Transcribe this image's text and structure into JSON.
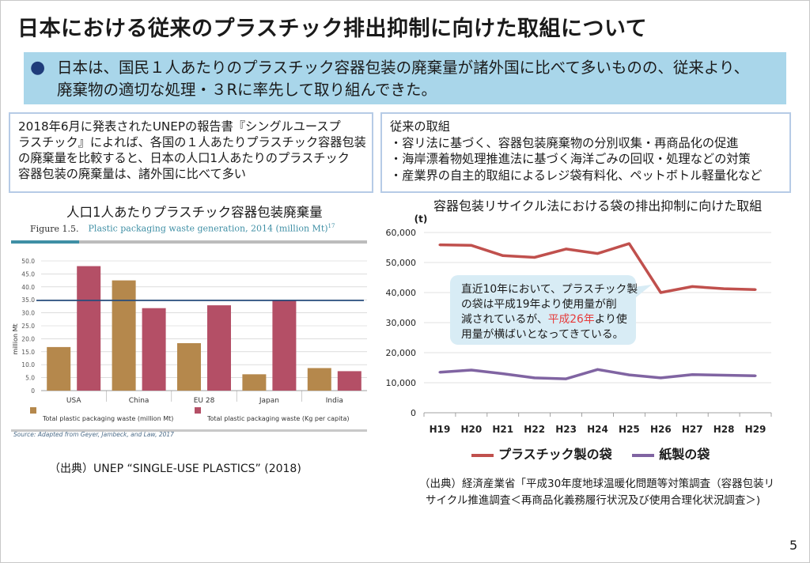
{
  "title": "日本における従来のプラスチック排出抑制に向けた取組について",
  "summary": {
    "line1": "日本は、国民１人あたりのプラスチック容器包装の廃棄量が諸外国に比べて多いものの、従来より、",
    "line2": "廃棄物の適切な処理・３Rに率先して取り組んできた。"
  },
  "left_box": {
    "lines": [
      "2018年6月に発表されたUNEPの報告書『シングルユースプ",
      "ラスチック』によれば、各国の１人あたりプラスチック容器包装",
      "の廃棄量を比較すると、日本の人口1人あたりのプラスチック",
      "容器包装の廃棄量は、諸外国に比べて多い"
    ]
  },
  "right_box": {
    "lines": [
      "従来の取組",
      "・容リ法に基づく、容器包装廃棄物の分別収集・再商品化の促進",
      "・海岸漂着物処理推進法に基づく海洋ごみの回収・処理などの対策",
      "・産業界の自主的取組によるレジ袋有料化、ペットボトル軽量化など"
    ]
  },
  "left_chart": {
    "heading": "人口1人あたりプラスチック容器包装廃棄量",
    "figure_label": "Figure 1.5.",
    "figure_caption": "Plastic packaging waste generation, 2014 (million Mt)",
    "figure_footnote": "17",
    "source": "Source:   Adapted from Geyer, Jambeck, and Law, 2017",
    "citation": "（出典）UNEP “SINGLE-USE PLASTICS” (2018)"
  },
  "right_chart": {
    "heading": "容器包装リサイクル法における袋の排出抑制に向けた取組",
    "citation_line1": "（出典）経済産業省「平成30年度地球温暖化問題等対策調査（容器包装リ",
    "citation_line2": "サイクル推進調査＜再商品化義務履行状況及び使用合理化状況調査＞)",
    "callout_pre": "直近10年において、プラスチック製\nの袋は平成19年より使用量が削\n減されているが、",
    "callout_red": "平成26年",
    "callout_post": "より使\n用量が横ばいとなってきている。"
  },
  "page_number": "5",
  "chart_data": [
    {
      "type": "bar",
      "title": "",
      "xlabel": "",
      "ylabel": "million Mt",
      "ylim": [
        0,
        50
      ],
      "yticks": [
        "0",
        "5.0",
        "10.0",
        "15.0",
        "20.0",
        "25.0",
        "30.0",
        "35.0",
        "40.0",
        "45.0",
        "50.0"
      ],
      "categories": [
        "USA",
        "China",
        "EU 28",
        "Japan",
        "India"
      ],
      "series": [
        {
          "name": "Total plastic packaging waste (million Mt)",
          "color": "#b5884c",
          "values": [
            16.8,
            42.5,
            18.3,
            6.3,
            8.7
          ]
        },
        {
          "name": "Total plastic packaging waste (Kg per capita)",
          "color": "#b44f66",
          "values": [
            48.0,
            31.8,
            32.9,
            34.8,
            7.5
          ]
        }
      ],
      "reference_line": {
        "value": 34.8,
        "color": "#264c7c"
      },
      "grid": true,
      "legend_position": "bottom"
    },
    {
      "type": "line",
      "title": "",
      "xlabel": "",
      "ylabel": "(t)",
      "ylim": [
        0,
        60000
      ],
      "yticks": [
        "0",
        "10,000",
        "20,000",
        "30,000",
        "40,000",
        "50,000",
        "60,000"
      ],
      "x": [
        "H19",
        "H20",
        "H21",
        "H22",
        "H23",
        "H24",
        "H25",
        "H26",
        "H27",
        "H28",
        "H29"
      ],
      "series": [
        {
          "name": "プラスチック製の袋",
          "color": "#c0504d",
          "values": [
            55900,
            55700,
            52300,
            51700,
            54500,
            53000,
            56300,
            40000,
            42000,
            41300,
            41000
          ]
        },
        {
          "name": "紙製の袋",
          "color": "#8064a2",
          "values": [
            13500,
            14200,
            13000,
            11600,
            11300,
            14400,
            12600,
            11600,
            12700,
            12500,
            12300
          ]
        }
      ],
      "grid": true,
      "legend_position": "bottom"
    }
  ]
}
